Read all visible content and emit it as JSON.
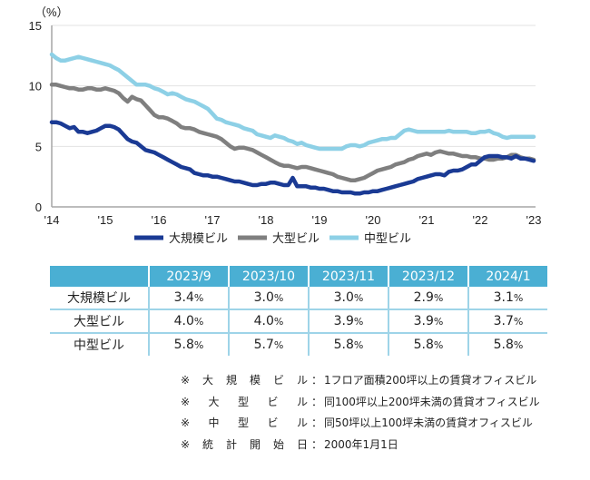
{
  "chart_data": {
    "type": "line",
    "title": "",
    "ylabel": "（%）",
    "xlabel": "",
    "ylim": [
      0,
      15
    ],
    "yticks": [
      0,
      5,
      10,
      15
    ],
    "grid": true,
    "x_start": "2014-01",
    "x_end": "2023-01",
    "x_interval": "monthly",
    "xtick_labels": [
      "'14",
      "'15",
      "'16",
      "'17",
      "'18",
      "'19",
      "'20",
      "'21",
      "'22",
      "'23"
    ],
    "legend_placement": "bottom",
    "series": [
      {
        "name": "大規模ビル",
        "color": "#1a3a94",
        "values": [
          7.0,
          7.0,
          6.9,
          6.7,
          6.5,
          6.6,
          6.2,
          6.2,
          6.1,
          6.2,
          6.3,
          6.5,
          6.7,
          6.7,
          6.6,
          6.4,
          6.0,
          5.6,
          5.4,
          5.3,
          5.0,
          4.7,
          4.6,
          4.5,
          4.3,
          4.1,
          3.9,
          3.7,
          3.5,
          3.3,
          3.2,
          3.1,
          2.8,
          2.7,
          2.6,
          2.6,
          2.5,
          2.5,
          2.4,
          2.3,
          2.2,
          2.1,
          2.1,
          2.0,
          1.9,
          1.8,
          1.8,
          1.9,
          1.9,
          2.0,
          2.0,
          1.9,
          1.8,
          1.8,
          2.4,
          1.7,
          1.7,
          1.7,
          1.6,
          1.6,
          1.5,
          1.5,
          1.4,
          1.3,
          1.3,
          1.2,
          1.2,
          1.2,
          1.1,
          1.1,
          1.2,
          1.2,
          1.3,
          1.3,
          1.4,
          1.5,
          1.6,
          1.7,
          1.8,
          1.9,
          2.0,
          2.1,
          2.3,
          2.4,
          2.5,
          2.6,
          2.7,
          2.7,
          2.6,
          2.9,
          3.0,
          3.0,
          3.1,
          3.3,
          3.5,
          3.5,
          3.8,
          4.1,
          4.2,
          4.2,
          4.2,
          4.1,
          4.1,
          4.0,
          4.2,
          4.0,
          4.0,
          3.9,
          3.8
        ],
        "table_values": []
      },
      {
        "name": "大型ビル",
        "color": "#7f7f7f",
        "values": [
          10.1,
          10.1,
          10.0,
          9.9,
          9.8,
          9.8,
          9.7,
          9.7,
          9.8,
          9.8,
          9.7,
          9.7,
          9.8,
          9.7,
          9.6,
          9.4,
          9.0,
          8.7,
          9.1,
          8.9,
          8.8,
          8.4,
          8.0,
          7.6,
          7.4,
          7.4,
          7.3,
          7.1,
          6.9,
          6.6,
          6.5,
          6.5,
          6.4,
          6.2,
          6.1,
          6.0,
          5.9,
          5.8,
          5.6,
          5.3,
          5.0,
          4.8,
          4.9,
          4.9,
          4.8,
          4.7,
          4.5,
          4.3,
          4.1,
          3.9,
          3.7,
          3.5,
          3.4,
          3.4,
          3.3,
          3.2,
          3.3,
          3.3,
          3.2,
          3.1,
          3.0,
          2.9,
          2.8,
          2.7,
          2.5,
          2.4,
          2.3,
          2.2,
          2.2,
          2.3,
          2.4,
          2.6,
          2.8,
          3.0,
          3.1,
          3.2,
          3.3,
          3.5,
          3.6,
          3.7,
          3.9,
          4.0,
          4.2,
          4.3,
          4.4,
          4.3,
          4.5,
          4.6,
          4.5,
          4.4,
          4.4,
          4.3,
          4.2,
          4.2,
          4.1,
          4.1,
          4.0,
          4.0,
          3.9,
          3.9,
          4.0,
          4.0,
          4.1,
          4.3,
          4.3,
          4.1,
          4.0,
          4.0,
          3.9
        ],
        "table_values": []
      },
      {
        "name": "中型ビル",
        "color": "#8dd0e6",
        "values": [
          12.6,
          12.3,
          12.1,
          12.1,
          12.2,
          12.3,
          12.4,
          12.3,
          12.2,
          12.1,
          12.0,
          11.9,
          11.8,
          11.7,
          11.5,
          11.3,
          11.0,
          10.7,
          10.4,
          10.1,
          10.1,
          10.1,
          10.0,
          9.8,
          9.7,
          9.5,
          9.3,
          9.4,
          9.3,
          9.1,
          8.9,
          8.8,
          8.7,
          8.5,
          8.3,
          8.1,
          7.7,
          7.3,
          7.2,
          7.0,
          6.9,
          6.8,
          6.7,
          6.5,
          6.4,
          6.3,
          6.0,
          5.9,
          5.8,
          5.7,
          5.9,
          5.8,
          5.7,
          5.5,
          5.4,
          5.2,
          5.3,
          5.1,
          5.0,
          4.9,
          4.8,
          4.8,
          4.8,
          4.8,
          4.8,
          4.8,
          5.0,
          5.1,
          5.1,
          5.0,
          5.1,
          5.3,
          5.4,
          5.5,
          5.6,
          5.6,
          5.7,
          5.7,
          6.0,
          6.3,
          6.4,
          6.3,
          6.2,
          6.2,
          6.2,
          6.2,
          6.2,
          6.2,
          6.2,
          6.3,
          6.2,
          6.2,
          6.2,
          6.2,
          6.1,
          6.1,
          6.2,
          6.2,
          6.3,
          6.1,
          6.0,
          5.8,
          5.7,
          5.8,
          5.8,
          5.8,
          5.8,
          5.8,
          5.8
        ],
        "table_values": []
      }
    ]
  },
  "legend": [
    {
      "name": "大規模ビル",
      "color": "#1a3a94"
    },
    {
      "name": "大型ビル",
      "color": "#7f7f7f"
    },
    {
      "name": "中型ビル",
      "color": "#8dd0e6"
    }
  ],
  "table": {
    "header_color": "#4aafd3",
    "columns": [
      "",
      "2023/9",
      "2023/10",
      "2023/11",
      "2023/12",
      "2024/1"
    ],
    "rows": [
      {
        "label": "大規模ビル",
        "values": [
          "3.4",
          "3.0",
          "3.0",
          "2.9",
          "3.1"
        ]
      },
      {
        "label": "大型ビル",
        "values": [
          "4.0",
          "4.0",
          "3.9",
          "3.9",
          "3.7"
        ]
      },
      {
        "label": "中型ビル",
        "values": [
          "5.8",
          "5.7",
          "5.8",
          "5.8",
          "5.8"
        ]
      }
    ],
    "unit": "%"
  },
  "notes": [
    {
      "mark": "※",
      "key": [
        "大",
        "規",
        "模",
        "ビ",
        "ル"
      ],
      "sep": "：",
      "text": "1フロア面積200坪以上の賃貸オフィスビル"
    },
    {
      "mark": "※",
      "key": [
        "大",
        "型",
        "ビ",
        "ル"
      ],
      "sep": "：",
      "text": "同100坪以上200坪未満の賃貸オフィスビル"
    },
    {
      "mark": "※",
      "key": [
        "中",
        "型",
        "ビ",
        "ル"
      ],
      "sep": "：",
      "text": "同50坪以上100坪未満の賃貸オフィスビル"
    },
    {
      "mark": "※",
      "key": [
        "統",
        "計",
        "開",
        "始",
        "日"
      ],
      "sep": "：",
      "text": "2000年1月1日"
    }
  ]
}
